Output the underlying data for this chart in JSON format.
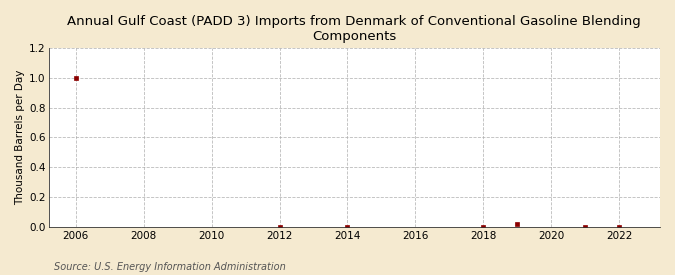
{
  "title": "Annual Gulf Coast (PADD 3) Imports from Denmark of Conventional Gasoline Blending\nComponents",
  "ylabel": "Thousand Barrels per Day",
  "source": "Source: U.S. Energy Information Administration",
  "figure_bg": "#f5ead0",
  "plot_bg": "#ffffff",
  "data_points": [
    {
      "year": 2006,
      "value": 1.0
    },
    {
      "year": 2012,
      "value": 0.0
    },
    {
      "year": 2014,
      "value": 0.0
    },
    {
      "year": 2018,
      "value": 0.0
    },
    {
      "year": 2019,
      "value": 0.02
    },
    {
      "year": 2021,
      "value": 0.0
    },
    {
      "year": 2022,
      "value": 0.0
    }
  ],
  "marker_color": "#8b0000",
  "marker_size": 3.5,
  "xlim": [
    2005.2,
    2023.2
  ],
  "ylim": [
    0.0,
    1.2
  ],
  "yticks": [
    0.0,
    0.2,
    0.4,
    0.6,
    0.8,
    1.0,
    1.2
  ],
  "xticks": [
    2006,
    2008,
    2010,
    2012,
    2014,
    2016,
    2018,
    2020,
    2022
  ],
  "grid_color": "#aaaaaa",
  "grid_style": "--",
  "title_fontsize": 9.5,
  "ylabel_fontsize": 7.5,
  "tick_fontsize": 7.5,
  "source_fontsize": 7
}
